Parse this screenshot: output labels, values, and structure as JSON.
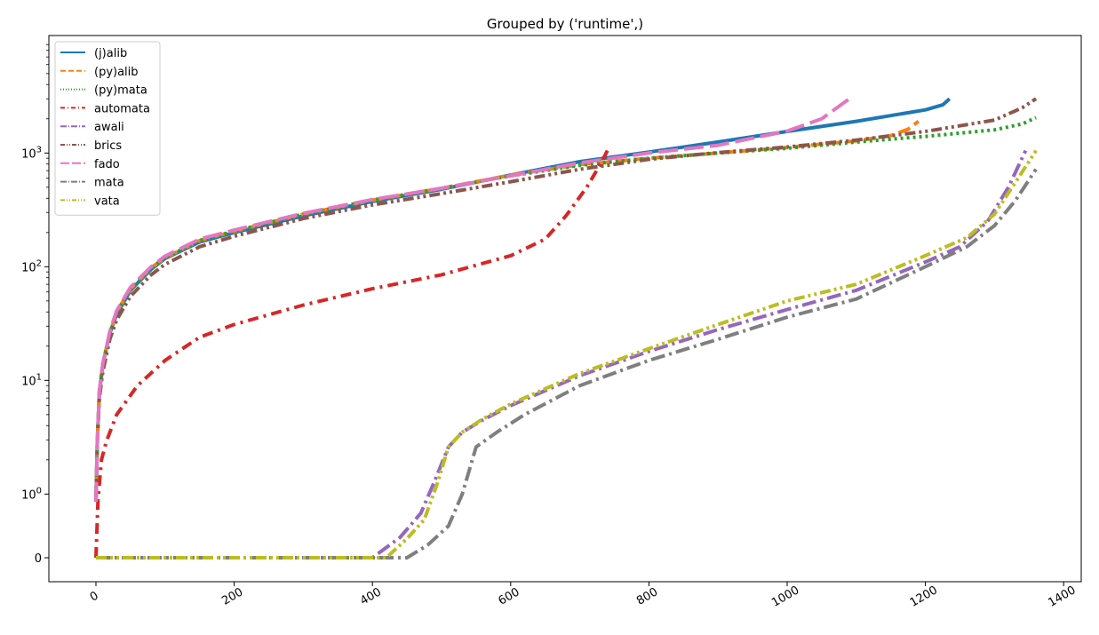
{
  "chart_data": {
    "type": "line",
    "title": "Grouped by ('runtime',)",
    "xlabel": "",
    "ylabel": "",
    "xlim": [
      -68,
      1420
    ],
    "y_scale": "symlog",
    "x_ticks": [
      {
        "value": 0,
        "label": "0"
      },
      {
        "value": 200,
        "label": "200"
      },
      {
        "value": 400,
        "label": "400"
      },
      {
        "value": 600,
        "label": "600"
      },
      {
        "value": 800,
        "label": "800"
      },
      {
        "value": 1000,
        "label": "1000"
      },
      {
        "value": 1200,
        "label": "1200"
      },
      {
        "value": 1400,
        "label": "1400"
      }
    ],
    "y_ticks": [
      {
        "value": 0,
        "label": "0"
      },
      {
        "value": 1,
        "label": "10^0",
        "base": "10",
        "exp": "0"
      },
      {
        "value": 10,
        "label": "10^1",
        "base": "10",
        "exp": "1"
      },
      {
        "value": 100,
        "label": "10^2",
        "base": "10",
        "exp": "2"
      },
      {
        "value": 1000,
        "label": "10^3",
        "base": "10",
        "exp": "3"
      }
    ],
    "legend": {
      "position": "top-left"
    },
    "grid": false,
    "series": [
      {
        "name": "(j)alib",
        "color": "#1f77b4",
        "dash": "solid",
        "points": [
          [
            0,
            0.88
          ],
          [
            2,
            3
          ],
          [
            5,
            8
          ],
          [
            10,
            14
          ],
          [
            20,
            26
          ],
          [
            30,
            38
          ],
          [
            50,
            62
          ],
          [
            80,
            95
          ],
          [
            100,
            118
          ],
          [
            150,
            165
          ],
          [
            200,
            200
          ],
          [
            300,
            280
          ],
          [
            400,
            375
          ],
          [
            500,
            480
          ],
          [
            600,
            640
          ],
          [
            700,
            840
          ],
          [
            800,
            1020
          ],
          [
            900,
            1250
          ],
          [
            1000,
            1550
          ],
          [
            1100,
            1900
          ],
          [
            1200,
            2400
          ],
          [
            1225,
            2650
          ],
          [
            1235,
            3000
          ]
        ]
      },
      {
        "name": "(py)alib",
        "color": "#ff7f0e",
        "dash": "dashed",
        "points": [
          [
            0,
            0.88
          ],
          [
            2,
            3
          ],
          [
            5,
            8
          ],
          [
            10,
            14
          ],
          [
            20,
            26
          ],
          [
            30,
            40
          ],
          [
            50,
            64
          ],
          [
            80,
            98
          ],
          [
            100,
            120
          ],
          [
            150,
            170
          ],
          [
            200,
            205
          ],
          [
            300,
            290
          ],
          [
            400,
            385
          ],
          [
            500,
            490
          ],
          [
            600,
            640
          ],
          [
            700,
            790
          ],
          [
            800,
            900
          ],
          [
            900,
            1000
          ],
          [
            1000,
            1120
          ],
          [
            1100,
            1280
          ],
          [
            1150,
            1420
          ],
          [
            1175,
            1620
          ],
          [
            1190,
            1900
          ]
        ]
      },
      {
        "name": "(py)mata",
        "color": "#2ca02c",
        "dash": "dotted",
        "points": [
          [
            0,
            0.88
          ],
          [
            2,
            3
          ],
          [
            5,
            8
          ],
          [
            10,
            14
          ],
          [
            20,
            26
          ],
          [
            30,
            40
          ],
          [
            50,
            63
          ],
          [
            80,
            97
          ],
          [
            100,
            120
          ],
          [
            150,
            170
          ],
          [
            200,
            205
          ],
          [
            300,
            290
          ],
          [
            400,
            385
          ],
          [
            500,
            490
          ],
          [
            600,
            630
          ],
          [
            700,
            780
          ],
          [
            800,
            900
          ],
          [
            900,
            1000
          ],
          [
            1000,
            1100
          ],
          [
            1100,
            1250
          ],
          [
            1200,
            1400
          ],
          [
            1300,
            1600
          ],
          [
            1340,
            1800
          ],
          [
            1360,
            2050
          ]
        ]
      },
      {
        "name": "automata",
        "color": "#d62728",
        "dash": "loose-dashdot",
        "points": [
          [
            0,
            0
          ],
          [
            3,
            0.9
          ],
          [
            8,
            2
          ],
          [
            15,
            2.9
          ],
          [
            30,
            5
          ],
          [
            60,
            9
          ],
          [
            100,
            15
          ],
          [
            150,
            24
          ],
          [
            200,
            31
          ],
          [
            300,
            46
          ],
          [
            400,
            64
          ],
          [
            500,
            85
          ],
          [
            600,
            125
          ],
          [
            650,
            175
          ],
          [
            680,
            280
          ],
          [
            710,
            500
          ],
          [
            730,
            800
          ],
          [
            740,
            1050
          ]
        ]
      },
      {
        "name": "awali",
        "color": "#9467bd",
        "dash": "dashdot",
        "points": [
          [
            0,
            0
          ],
          [
            400,
            0
          ],
          [
            440,
            0.32
          ],
          [
            470,
            0.7
          ],
          [
            490,
            1.3
          ],
          [
            510,
            2.6
          ],
          [
            530,
            3.5
          ],
          [
            560,
            4.5
          ],
          [
            600,
            6
          ],
          [
            700,
            11
          ],
          [
            800,
            18
          ],
          [
            900,
            28
          ],
          [
            1000,
            42
          ],
          [
            1100,
            62
          ],
          [
            1200,
            110
          ],
          [
            1250,
            150
          ],
          [
            1290,
            250
          ],
          [
            1320,
            500
          ],
          [
            1345,
            1050
          ]
        ]
      },
      {
        "name": "brics",
        "color": "#8c564b",
        "dash": "dashdotdot",
        "points": [
          [
            0,
            0.88
          ],
          [
            2,
            3
          ],
          [
            5,
            7
          ],
          [
            10,
            12
          ],
          [
            20,
            23
          ],
          [
            30,
            34
          ],
          [
            50,
            55
          ],
          [
            80,
            85
          ],
          [
            100,
            105
          ],
          [
            150,
            150
          ],
          [
            200,
            185
          ],
          [
            300,
            265
          ],
          [
            400,
            350
          ],
          [
            500,
            440
          ],
          [
            600,
            560
          ],
          [
            700,
            720
          ],
          [
            800,
            880
          ],
          [
            900,
            1010
          ],
          [
            1000,
            1130
          ],
          [
            1100,
            1300
          ],
          [
            1200,
            1550
          ],
          [
            1300,
            1950
          ],
          [
            1340,
            2500
          ],
          [
            1360,
            3000
          ]
        ]
      },
      {
        "name": "fado",
        "color": "#e377c2",
        "dash": "longdash",
        "points": [
          [
            0,
            0.88
          ],
          [
            2,
            3
          ],
          [
            5,
            8
          ],
          [
            10,
            14
          ],
          [
            20,
            27
          ],
          [
            30,
            41
          ],
          [
            50,
            66
          ],
          [
            80,
            100
          ],
          [
            100,
            124
          ],
          [
            150,
            175
          ],
          [
            200,
            210
          ],
          [
            300,
            295
          ],
          [
            400,
            390
          ],
          [
            500,
            490
          ],
          [
            600,
            630
          ],
          [
            700,
            820
          ],
          [
            800,
            1000
          ],
          [
            900,
            1170
          ],
          [
            1000,
            1560
          ],
          [
            1050,
            2000
          ],
          [
            1090,
            3000
          ]
        ]
      },
      {
        "name": "mata",
        "color": "#7f7f7f",
        "dash": "dashdot",
        "points": [
          [
            0,
            0
          ],
          [
            450,
            0
          ],
          [
            480,
            0.2
          ],
          [
            510,
            0.5
          ],
          [
            530,
            1.0
          ],
          [
            550,
            2.6
          ],
          [
            580,
            3.5
          ],
          [
            620,
            5
          ],
          [
            700,
            9
          ],
          [
            800,
            15
          ],
          [
            900,
            23
          ],
          [
            1000,
            36
          ],
          [
            1100,
            52
          ],
          [
            1200,
            100
          ],
          [
            1260,
            150
          ],
          [
            1300,
            230
          ],
          [
            1330,
            380
          ],
          [
            1360,
            720
          ]
        ]
      },
      {
        "name": "vata",
        "color": "#bcbd22",
        "dash": "dashdotdot",
        "points": [
          [
            0,
            0
          ],
          [
            420,
            0
          ],
          [
            450,
            0.3
          ],
          [
            475,
            0.6
          ],
          [
            495,
            1.3
          ],
          [
            510,
            2.6
          ],
          [
            530,
            3.5
          ],
          [
            560,
            4.6
          ],
          [
            600,
            6.2
          ],
          [
            700,
            11.5
          ],
          [
            800,
            19
          ],
          [
            900,
            31
          ],
          [
            1000,
            50
          ],
          [
            1100,
            70
          ],
          [
            1200,
            125
          ],
          [
            1260,
            180
          ],
          [
            1300,
            290
          ],
          [
            1330,
            550
          ],
          [
            1360,
            1050
          ]
        ]
      }
    ]
  }
}
